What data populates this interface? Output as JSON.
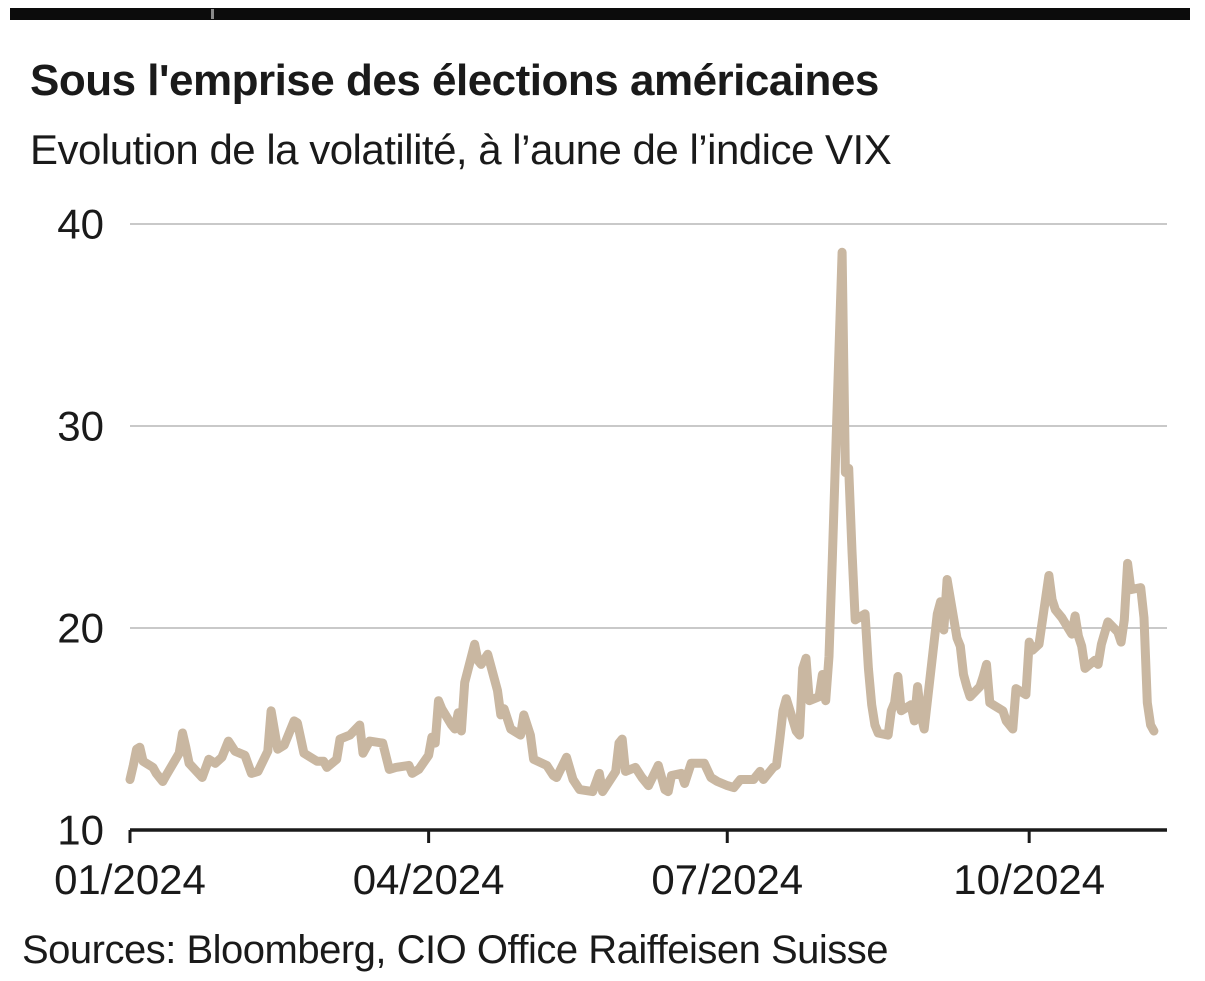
{
  "page": {
    "top_bar_color": "#0c0c0c"
  },
  "chart_data": {
    "type": "line",
    "title": "Sous l'emprise des élections américaines",
    "subtitle": "Evolution de la volatilité, à l’aune de l’indice VIX",
    "source_note": "Sources: Bloomberg, CIO Office Raiffeisen Suisse",
    "legend": "none",
    "grid": "horizontal",
    "ylim": [
      10,
      40
    ],
    "y_ticks": [
      10,
      20,
      30,
      40
    ],
    "x_unit": "days since 2024-01-01",
    "xlim_days": [
      0,
      316
    ],
    "x_ticks": [
      {
        "day": 0,
        "label": "01/2024"
      },
      {
        "day": 91,
        "label": "04/2024"
      },
      {
        "day": 182,
        "label": "07/2024"
      },
      {
        "day": 274,
        "label": "10/2024"
      }
    ],
    "colors": {
      "line": "#C9B7A1",
      "grid": "#C9C9C9",
      "axis": "#1A1A1A",
      "text": "#1A1A1A"
    },
    "series": [
      {
        "name": "Indice VIX",
        "color": "#C9B7A1",
        "points": [
          [
            0,
            12.5
          ],
          [
            1,
            13.2
          ],
          [
            2,
            14.0
          ],
          [
            3,
            14.1
          ],
          [
            4,
            13.4
          ],
          [
            7,
            13.1
          ],
          [
            8,
            12.8
          ],
          [
            10,
            12.4
          ],
          [
            11,
            12.7
          ],
          [
            15,
            13.8
          ],
          [
            16,
            14.8
          ],
          [
            17,
            14.1
          ],
          [
            18,
            13.3
          ],
          [
            22,
            12.6
          ],
          [
            24,
            13.5
          ],
          [
            26,
            13.3
          ],
          [
            28,
            13.6
          ],
          [
            30,
            14.4
          ],
          [
            32,
            13.9
          ],
          [
            35,
            13.7
          ],
          [
            37,
            12.8
          ],
          [
            39,
            12.9
          ],
          [
            42,
            13.9
          ],
          [
            43,
            15.9
          ],
          [
            45,
            14.0
          ],
          [
            47,
            14.2
          ],
          [
            50,
            15.4
          ],
          [
            51,
            15.3
          ],
          [
            53,
            13.8
          ],
          [
            57,
            13.4
          ],
          [
            59,
            13.4
          ],
          [
            60,
            13.1
          ],
          [
            63,
            13.5
          ],
          [
            64,
            14.5
          ],
          [
            67,
            14.7
          ],
          [
            70,
            15.2
          ],
          [
            71,
            13.8
          ],
          [
            73,
            14.4
          ],
          [
            77,
            14.3
          ],
          [
            79,
            13.0
          ],
          [
            81,
            13.1
          ],
          [
            85,
            13.2
          ],
          [
            86,
            12.8
          ],
          [
            88,
            13.0
          ],
          [
            91,
            13.7
          ],
          [
            92,
            14.6
          ],
          [
            93,
            14.3
          ],
          [
            94,
            16.4
          ],
          [
            95,
            16.0
          ],
          [
            98,
            15.2
          ],
          [
            99,
            15.0
          ],
          [
            100,
            15.8
          ],
          [
            101,
            14.9
          ],
          [
            102,
            17.3
          ],
          [
            105,
            19.2
          ],
          [
            106,
            18.4
          ],
          [
            107,
            18.2
          ],
          [
            109,
            18.7
          ],
          [
            112,
            16.9
          ],
          [
            113,
            15.7
          ],
          [
            114,
            16.0
          ],
          [
            116,
            15.0
          ],
          [
            119,
            14.7
          ],
          [
            120,
            15.7
          ],
          [
            122,
            14.7
          ],
          [
            123,
            13.5
          ],
          [
            127,
            13.2
          ],
          [
            129,
            12.7
          ],
          [
            130,
            12.6
          ],
          [
            133,
            13.6
          ],
          [
            135,
            12.5
          ],
          [
            137,
            12.0
          ],
          [
            141,
            11.9
          ],
          [
            143,
            12.8
          ],
          [
            144,
            11.9
          ],
          [
            148,
            12.9
          ],
          [
            149,
            14.3
          ],
          [
            150,
            14.5
          ],
          [
            151,
            12.9
          ],
          [
            154,
            13.1
          ],
          [
            156,
            12.6
          ],
          [
            158,
            12.2
          ],
          [
            161,
            13.2
          ],
          [
            163,
            12.0
          ],
          [
            164,
            11.9
          ],
          [
            165,
            12.7
          ],
          [
            168,
            12.8
          ],
          [
            169,
            12.3
          ],
          [
            171,
            13.3
          ],
          [
            175,
            13.3
          ],
          [
            177,
            12.6
          ],
          [
            179,
            12.4
          ],
          [
            182,
            12.2
          ],
          [
            184,
            12.1
          ],
          [
            186,
            12.5
          ],
          [
            190,
            12.5
          ],
          [
            192,
            12.9
          ],
          [
            193,
            12.5
          ],
          [
            196,
            13.1
          ],
          [
            197,
            13.2
          ],
          [
            198,
            14.5
          ],
          [
            199,
            15.9
          ],
          [
            200,
            16.5
          ],
          [
            203,
            14.9
          ],
          [
            204,
            14.7
          ],
          [
            205,
            18.0
          ],
          [
            206,
            18.5
          ],
          [
            207,
            16.4
          ],
          [
            210,
            16.6
          ],
          [
            211,
            17.7
          ],
          [
            212,
            16.4
          ],
          [
            213,
            18.6
          ],
          [
            214,
            23.4
          ],
          [
            217,
            38.6
          ],
          [
            218,
            27.7
          ],
          [
            219,
            27.9
          ],
          [
            220,
            23.8
          ],
          [
            221,
            20.4
          ],
          [
            224,
            20.7
          ],
          [
            225,
            18.0
          ],
          [
            226,
            16.2
          ],
          [
            227,
            15.2
          ],
          [
            228,
            14.8
          ],
          [
            231,
            14.7
          ],
          [
            232,
            15.9
          ],
          [
            233,
            16.3
          ],
          [
            234,
            17.6
          ],
          [
            235,
            15.9
          ],
          [
            238,
            16.2
          ],
          [
            239,
            15.4
          ],
          [
            240,
            17.1
          ],
          [
            241,
            15.7
          ],
          [
            242,
            15.0
          ],
          [
            246,
            20.7
          ],
          [
            247,
            21.3
          ],
          [
            248,
            19.9
          ],
          [
            249,
            22.4
          ],
          [
            252,
            19.5
          ],
          [
            253,
            19.1
          ],
          [
            254,
            17.7
          ],
          [
            255,
            17.1
          ],
          [
            256,
            16.6
          ],
          [
            259,
            17.1
          ],
          [
            260,
            17.6
          ],
          [
            261,
            18.2
          ],
          [
            262,
            16.3
          ],
          [
            263,
            16.2
          ],
          [
            266,
            15.9
          ],
          [
            267,
            15.4
          ],
          [
            269,
            15.0
          ],
          [
            270,
            17.0
          ],
          [
            273,
            16.7
          ],
          [
            274,
            19.3
          ],
          [
            275,
            18.9
          ],
          [
            277,
            19.2
          ],
          [
            280,
            22.6
          ],
          [
            281,
            21.4
          ],
          [
            282,
            20.9
          ],
          [
            284,
            20.5
          ],
          [
            287,
            19.7
          ],
          [
            288,
            20.6
          ],
          [
            289,
            19.6
          ],
          [
            290,
            19.1
          ],
          [
            291,
            18.0
          ],
          [
            294,
            18.4
          ],
          [
            295,
            18.2
          ],
          [
            296,
            19.2
          ],
          [
            298,
            20.3
          ],
          [
            301,
            19.8
          ],
          [
            302,
            19.3
          ],
          [
            303,
            20.4
          ],
          [
            304,
            23.2
          ],
          [
            305,
            21.9
          ],
          [
            308,
            22.0
          ],
          [
            309,
            20.5
          ],
          [
            310,
            16.3
          ],
          [
            311,
            15.2
          ],
          [
            312,
            14.9
          ]
        ]
      }
    ]
  }
}
